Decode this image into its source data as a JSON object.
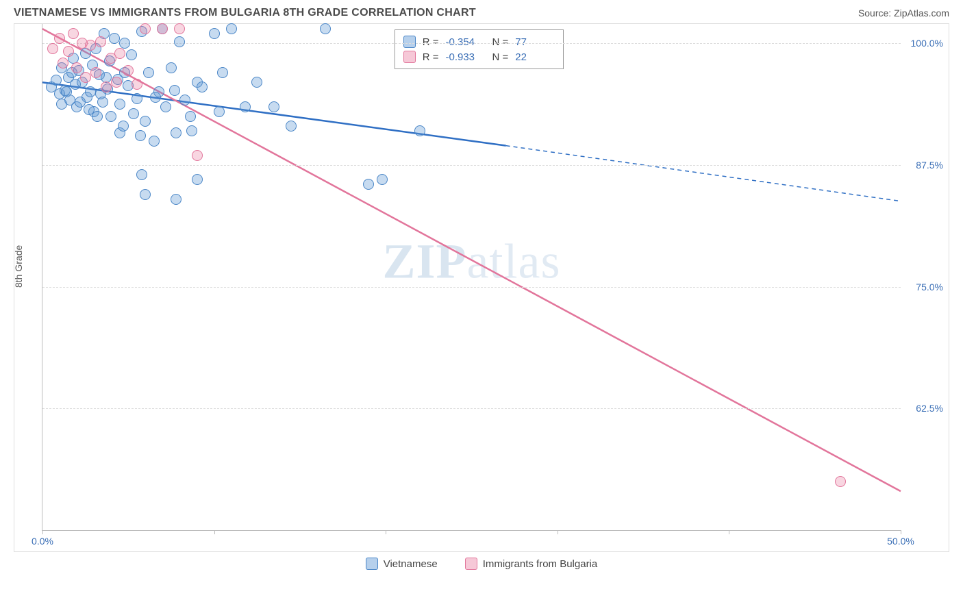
{
  "title": "VIETNAMESE VS IMMIGRANTS FROM BULGARIA 8TH GRADE CORRELATION CHART",
  "source": "Source: ZipAtlas.com",
  "ylabel": "8th Grade",
  "watermark_bold": "ZIP",
  "watermark_rest": "atlas",
  "chart": {
    "type": "scatter",
    "background_color": "#ffffff",
    "grid_color": "#dddddd",
    "axis_color": "#bbbbbb",
    "font_color_ticks": "#3b6fb6",
    "xlim": [
      0,
      50
    ],
    "ylim": [
      50,
      102
    ],
    "xticks": [
      {
        "pos": 0,
        "label": "0.0%"
      },
      {
        "pos": 10,
        "label": ""
      },
      {
        "pos": 20,
        "label": ""
      },
      {
        "pos": 30,
        "label": ""
      },
      {
        "pos": 40,
        "label": ""
      },
      {
        "pos": 50,
        "label": "50.0%"
      }
    ],
    "yticks": [
      {
        "pos": 62.5,
        "label": "62.5%"
      },
      {
        "pos": 75,
        "label": "75.0%"
      },
      {
        "pos": 87.5,
        "label": "87.5%"
      },
      {
        "pos": 100,
        "label": "100.0%"
      }
    ],
    "series": [
      {
        "name": "Vietnamese",
        "color_fill": "rgba(94,151,212,0.35)",
        "color_stroke": "#4a86c7",
        "marker_class": "blue",
        "marker_size": 16,
        "R": "-0.354",
        "N": "77",
        "trend": {
          "x1": 0,
          "y1": 96,
          "x2": 27,
          "y2": 89.5,
          "color": "#2f6fc4",
          "width": 2.5
        },
        "trend_ext": {
          "x1": 27,
          "y1": 89.5,
          "x2": 50,
          "y2": 83.8,
          "color": "#2f6fc4",
          "width": 1.5,
          "dash": "6,5"
        },
        "points": [
          [
            0.5,
            95.5
          ],
          [
            0.8,
            96.2
          ],
          [
            1.0,
            94.8
          ],
          [
            1.1,
            97.5
          ],
          [
            1.3,
            95.2
          ],
          [
            1.5,
            96.5
          ],
          [
            1.6,
            94.2
          ],
          [
            1.8,
            98.5
          ],
          [
            1.9,
            95.8
          ],
          [
            2.0,
            93.5
          ],
          [
            2.1,
            97.2
          ],
          [
            2.3,
            96.0
          ],
          [
            2.5,
            99.0
          ],
          [
            2.6,
            94.5
          ],
          [
            2.8,
            95.0
          ],
          [
            2.9,
            97.8
          ],
          [
            3.0,
            93.0
          ],
          [
            3.1,
            99.5
          ],
          [
            3.3,
            96.8
          ],
          [
            3.5,
            94.0
          ],
          [
            3.6,
            101.0
          ],
          [
            3.8,
            95.3
          ],
          [
            3.9,
            98.2
          ],
          [
            4.0,
            92.5
          ],
          [
            4.2,
            100.5
          ],
          [
            4.4,
            96.3
          ],
          [
            4.5,
            93.8
          ],
          [
            4.8,
            100.0
          ],
          [
            5.0,
            95.7
          ],
          [
            5.2,
            98.8
          ],
          [
            5.5,
            94.3
          ],
          [
            5.7,
            90.5
          ],
          [
            5.8,
            101.2
          ],
          [
            6.0,
            92.0
          ],
          [
            6.2,
            97.0
          ],
          [
            6.5,
            90.0
          ],
          [
            6.8,
            95.0
          ],
          [
            7.0,
            101.5
          ],
          [
            7.2,
            93.5
          ],
          [
            7.5,
            97.5
          ],
          [
            7.8,
            90.8
          ],
          [
            8.0,
            100.2
          ],
          [
            8.3,
            94.2
          ],
          [
            8.7,
            91.0
          ],
          [
            9.0,
            96.0
          ],
          [
            9.0,
            86.0
          ],
          [
            9.3,
            95.5
          ],
          [
            10.0,
            101.0
          ],
          [
            10.3,
            93.0
          ],
          [
            10.5,
            97.0
          ],
          [
            11.0,
            101.5
          ],
          [
            11.8,
            93.5
          ],
          [
            12.5,
            96.0
          ],
          [
            13.5,
            93.5
          ],
          [
            14.5,
            91.5
          ],
          [
            16.5,
            101.5
          ],
          [
            19.0,
            85.5
          ],
          [
            19.8,
            86.0
          ],
          [
            22.0,
            91.0
          ],
          [
            5.8,
            86.5
          ],
          [
            6.0,
            84.5
          ],
          [
            7.8,
            84.0
          ],
          [
            4.5,
            90.8
          ],
          [
            1.1,
            93.8
          ],
          [
            1.4,
            95.0
          ],
          [
            2.2,
            94.0
          ],
          [
            3.2,
            92.5
          ],
          [
            3.7,
            96.5
          ],
          [
            2.7,
            93.2
          ],
          [
            4.7,
            91.5
          ],
          [
            5.3,
            92.8
          ],
          [
            6.6,
            94.5
          ],
          [
            7.7,
            95.2
          ],
          [
            8.6,
            92.5
          ],
          [
            4.8,
            97.0
          ],
          [
            3.4,
            94.8
          ],
          [
            1.7,
            97.0
          ]
        ]
      },
      {
        "name": "Immigrants from Bulgaria",
        "color_fill": "rgba(232,118,154,0.3)",
        "color_stroke": "#e2759b",
        "marker_class": "pink",
        "marker_size": 16,
        "R": "-0.933",
        "N": "22",
        "trend": {
          "x1": 0,
          "y1": 101.5,
          "x2": 50,
          "y2": 54,
          "color": "#e2759b",
          "width": 2.5
        },
        "points": [
          [
            0.6,
            99.5
          ],
          [
            1.0,
            100.5
          ],
          [
            1.2,
            98.0
          ],
          [
            1.5,
            99.2
          ],
          [
            1.8,
            101.0
          ],
          [
            2.0,
            97.5
          ],
          [
            2.3,
            100.0
          ],
          [
            2.5,
            96.5
          ],
          [
            2.8,
            99.8
          ],
          [
            3.1,
            97.0
          ],
          [
            3.4,
            100.2
          ],
          [
            3.7,
            95.5
          ],
          [
            4.0,
            98.5
          ],
          [
            4.3,
            96.0
          ],
          [
            4.5,
            99.0
          ],
          [
            5.0,
            97.2
          ],
          [
            5.5,
            95.8
          ],
          [
            6.0,
            101.5
          ],
          [
            7.0,
            101.5
          ],
          [
            8.0,
            101.5
          ],
          [
            9.0,
            88.5
          ],
          [
            46.5,
            55.0
          ]
        ]
      }
    ]
  },
  "stats_legend": {
    "r_label": "R =",
    "n_label": "N ="
  },
  "bottom_legend": [
    {
      "label": "Vietnamese",
      "swatch": "blue"
    },
    {
      "label": "Immigrants from Bulgaria",
      "swatch": "pink"
    }
  ]
}
